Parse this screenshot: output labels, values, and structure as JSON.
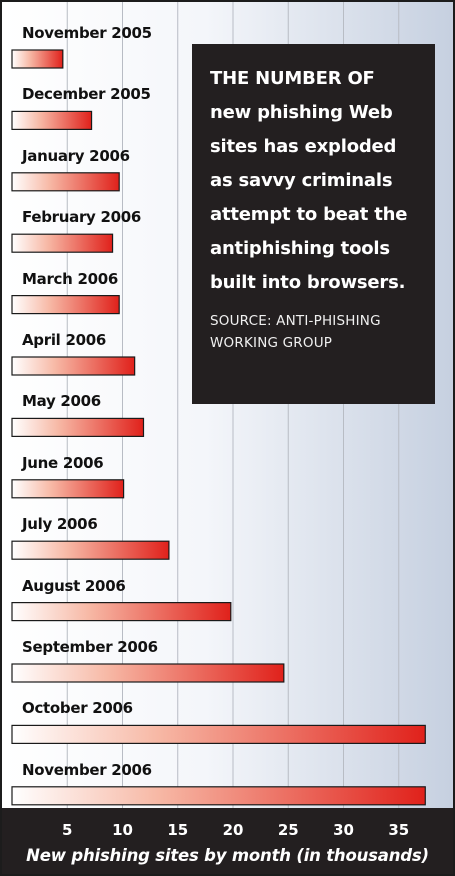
{
  "chart_data": {
    "type": "bar",
    "orientation": "horizontal",
    "categories": [
      "November 2005",
      "December 2005",
      "January 2006",
      "February 2006",
      "March 2006",
      "April 2006",
      "May 2006",
      "June 2006",
      "July 2006",
      "August 2006",
      "September 2006",
      "October 2006",
      "November 2006"
    ],
    "values": [
      4.6,
      7.2,
      9.7,
      9.1,
      9.7,
      11.1,
      11.9,
      10.1,
      14.2,
      19.8,
      24.6,
      37.4,
      37.4
    ],
    "xlabel": "New phishing sites by month (in thousands)",
    "xticks": [
      5,
      10,
      15,
      20,
      25,
      30,
      35
    ],
    "xlim": [
      0,
      39
    ],
    "grid": true,
    "colors": {
      "bar_start": "#ffffff",
      "bar_end": "#e0211b",
      "callout_bg": "#231f20",
      "axis_band": "#231f20",
      "grid": "#b8bcc4"
    }
  },
  "callout": {
    "text": "THE NUMBER OF new phishing Web sites has exploded as savvy criminals attempt to beat the antiphishing tools built into browsers.",
    "source": "SOURCE: ANTI-PHISHING WORKING GROUP"
  }
}
